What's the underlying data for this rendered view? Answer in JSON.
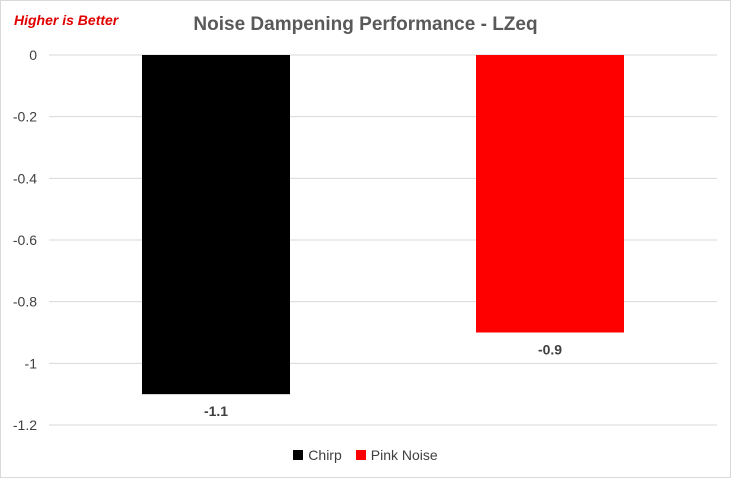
{
  "annotation": "Higher is Better",
  "chart_data": {
    "type": "bar",
    "title": "Noise Dampening Performance - LZeq",
    "xlabel": "",
    "ylabel": "",
    "ylim": [
      -1.2,
      0
    ],
    "yticks": [
      0,
      -0.2,
      -0.4,
      -0.6,
      -0.8,
      -1,
      -1.2
    ],
    "grid": true,
    "legend_position": "bottom",
    "series": [
      {
        "name": "Chirp",
        "values": [
          -1.1
        ],
        "color": "#000000",
        "data_label": "-1.1"
      },
      {
        "name": "Pink Noise",
        "values": [
          -0.9
        ],
        "color": "#ff0000",
        "data_label": "-0.9"
      }
    ]
  }
}
